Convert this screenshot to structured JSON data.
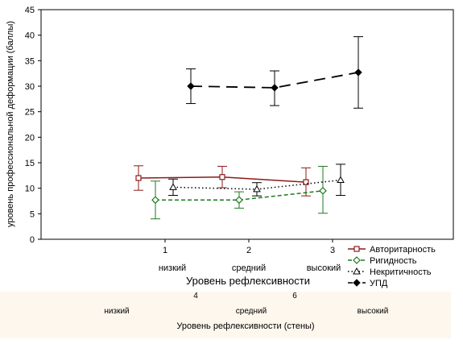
{
  "chart_data": {
    "type": "line",
    "title": "",
    "ylabel": "уровень профессиональной деформации (баллы)",
    "xlabel": "Уровень рефлексивности",
    "ylim": [
      0,
      45
    ],
    "yticks": [
      "0",
      "5",
      "10",
      "15",
      "20",
      "25",
      "30",
      "35",
      "40",
      "45"
    ],
    "xticks": [
      "1",
      "2",
      "3"
    ],
    "category_labels": [
      "низкий",
      "средний",
      "высокий"
    ],
    "x": [
      1,
      2,
      3
    ],
    "legend_position": "bottom-right",
    "series": [
      {
        "name": "Авторитарность",
        "color": "#8b1a1a",
        "line_style": "solid",
        "marker": "open-square",
        "values": [
          12.0,
          12.2,
          11.2
        ],
        "ci_low": [
          9.6,
          10.1,
          8.5
        ],
        "ci_high": [
          14.4,
          14.3,
          14.0
        ]
      },
      {
        "name": "Ригидность",
        "color": "#1e7a1e",
        "line_style": "dashed",
        "marker": "open-diamond",
        "values": [
          7.7,
          7.7,
          9.5
        ],
        "ci_low": [
          4.0,
          6.1,
          5.1
        ],
        "ci_high": [
          11.4,
          9.3,
          14.3
        ]
      },
      {
        "name": "Некритичность",
        "color": "#000000",
        "line_style": "dotted",
        "marker": "open-triangle",
        "values": [
          10.2,
          9.8,
          11.6
        ],
        "ci_low": [
          8.6,
          8.5,
          8.6
        ],
        "ci_high": [
          11.8,
          11.1,
          14.7
        ]
      },
      {
        "name": "УПД",
        "color": "#000000",
        "line_style": "long-dashed",
        "marker": "filled-diamond",
        "values": [
          30.0,
          29.7,
          32.7
        ],
        "ci_low": [
          26.6,
          26.2,
          25.7
        ],
        "ci_high": [
          33.4,
          33.0,
          39.7
        ]
      }
    ],
    "faint_axis": {
      "tick_labels": [
        "4",
        "6"
      ],
      "category_labels": [
        "низкий",
        "средний",
        "высокий"
      ],
      "title": "Уровень рефлексивности (стены)"
    }
  }
}
